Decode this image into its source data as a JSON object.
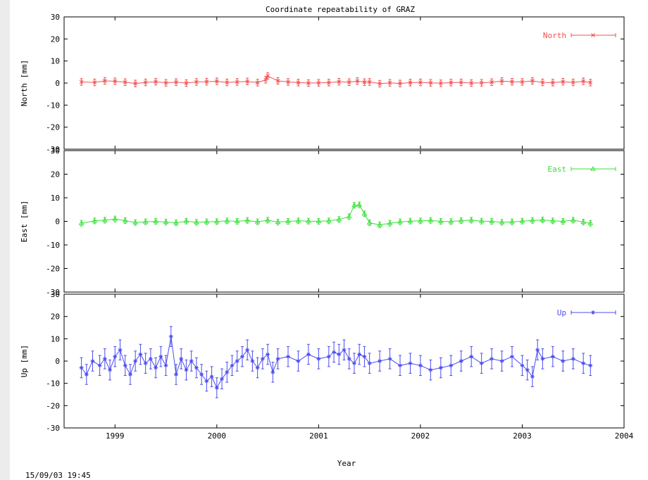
{
  "title": "Coordinate repeatability of GRAZ",
  "timestamp": "15/09/03 19:45",
  "chart_data": {
    "type": "scatter",
    "title": "Coordinate repeatability of GRAZ",
    "xlabel": "Year",
    "xlim": [
      1998.5,
      2004.0
    ],
    "xticks": [
      "1999",
      "2000",
      "2001",
      "2002",
      "2003",
      "2004"
    ],
    "yticks": [
      "30",
      "20",
      "10",
      "0",
      "-10",
      "-20",
      "-30"
    ],
    "grid": false,
    "legend_position": "top-right",
    "panels": [
      {
        "name": "North",
        "ylabel": "North [mm]",
        "ylim": [
          -30,
          30
        ],
        "color": "#f05050",
        "marker": "x",
        "series": [
          {
            "name": "North",
            "x": [
              1998.67,
              1998.8,
              1998.9,
              1999.0,
              1999.1,
              1999.2,
              1999.3,
              1999.4,
              1999.5,
              1999.6,
              1999.7,
              1999.8,
              1999.9,
              2000.0,
              2000.1,
              2000.2,
              2000.3,
              2000.4,
              2000.48,
              2000.5,
              2000.6,
              2000.7,
              2000.8,
              2000.9,
              2001.0,
              2001.1,
              2001.2,
              2001.3,
              2001.38,
              2001.45,
              2001.5,
              2001.6,
              2001.7,
              2001.8,
              2001.9,
              2002.0,
              2002.1,
              2002.2,
              2002.3,
              2002.4,
              2002.5,
              2002.6,
              2002.7,
              2002.8,
              2002.9,
              2003.0,
              2003.1,
              2003.2,
              2003.3,
              2003.4,
              2003.5,
              2003.6,
              2003.67
            ],
            "y": [
              0.5,
              0.3,
              1.0,
              0.8,
              0.4,
              -0.2,
              0.3,
              0.6,
              0.1,
              0.4,
              0.0,
              0.5,
              0.6,
              0.8,
              0.3,
              0.5,
              0.7,
              0.2,
              1.5,
              3.2,
              1.0,
              0.5,
              0.2,
              0.0,
              0.1,
              0.2,
              0.6,
              0.4,
              0.9,
              0.4,
              0.5,
              -0.3,
              0.1,
              -0.2,
              0.2,
              0.3,
              0.1,
              -0.1,
              0.2,
              0.3,
              0.0,
              0.1,
              0.4,
              0.9,
              0.6,
              0.5,
              1.0,
              0.3,
              0.2,
              0.6,
              0.3,
              0.8,
              0.2
            ],
            "err": 1.5
          }
        ]
      },
      {
        "name": "East",
        "ylabel": "East [mm]",
        "ylim": [
          -30,
          30
        ],
        "color": "#38e038",
        "marker": "triangle",
        "series": [
          {
            "name": "East",
            "x": [
              1998.67,
              1998.8,
              1998.9,
              1999.0,
              1999.1,
              1999.2,
              1999.3,
              1999.4,
              1999.5,
              1999.6,
              1999.7,
              1999.8,
              1999.9,
              2000.0,
              2000.1,
              2000.2,
              2000.3,
              2000.4,
              2000.5,
              2000.6,
              2000.7,
              2000.8,
              2000.9,
              2001.0,
              2001.1,
              2001.2,
              2001.3,
              2001.35,
              2001.4,
              2001.45,
              2001.5,
              2001.6,
              2001.7,
              2001.8,
              2001.9,
              2002.0,
              2002.1,
              2002.2,
              2002.3,
              2002.4,
              2002.5,
              2002.6,
              2002.7,
              2002.8,
              2002.9,
              2003.0,
              2003.1,
              2003.2,
              2003.3,
              2003.4,
              2003.5,
              2003.6,
              2003.67
            ],
            "y": [
              -0.8,
              0.2,
              0.5,
              1.0,
              0.3,
              -0.5,
              -0.2,
              0.0,
              -0.3,
              -0.6,
              0.1,
              -0.4,
              -0.2,
              -0.1,
              0.2,
              0.0,
              0.4,
              -0.2,
              0.5,
              -0.3,
              0.0,
              0.2,
              0.1,
              0.0,
              0.2,
              0.8,
              2.0,
              6.8,
              7.0,
              3.2,
              -0.6,
              -1.5,
              -0.8,
              -0.2,
              0.1,
              0.2,
              0.4,
              0.0,
              -0.1,
              0.3,
              0.5,
              0.1,
              0.0,
              -0.4,
              -0.2,
              0.1,
              0.4,
              0.6,
              0.2,
              0.0,
              0.5,
              -0.3,
              -0.8
            ],
            "err": 1.2
          }
        ]
      },
      {
        "name": "Up",
        "ylabel": "Up [mm]",
        "ylim": [
          -30,
          30
        ],
        "color": "#4c4cf0",
        "marker": "star",
        "series": [
          {
            "name": "Up",
            "x": [
              1998.67,
              1998.72,
              1998.78,
              1998.85,
              1998.9,
              1998.95,
              1999.0,
              1999.05,
              1999.1,
              1999.15,
              1999.2,
              1999.25,
              1999.3,
              1999.35,
              1999.4,
              1999.45,
              1999.5,
              1999.55,
              1999.6,
              1999.65,
              1999.7,
              1999.75,
              1999.8,
              1999.85,
              1999.9,
              1999.95,
              2000.0,
              2000.05,
              2000.1,
              2000.15,
              2000.2,
              2000.25,
              2000.3,
              2000.35,
              2000.4,
              2000.45,
              2000.5,
              2000.55,
              2000.6,
              2000.7,
              2000.8,
              2000.9,
              2001.0,
              2001.1,
              2001.15,
              2001.2,
              2001.25,
              2001.3,
              2001.35,
              2001.4,
              2001.45,
              2001.5,
              2001.6,
              2001.7,
              2001.8,
              2001.9,
              2002.0,
              2002.1,
              2002.2,
              2002.3,
              2002.4,
              2002.5,
              2002.6,
              2002.7,
              2002.8,
              2002.9,
              2003.0,
              2003.05,
              2003.1,
              2003.15,
              2003.2,
              2003.3,
              2003.4,
              2003.5,
              2003.6,
              2003.67
            ],
            "y": [
              -3,
              -6,
              0,
              -2,
              1,
              -4,
              2,
              5,
              -2,
              -6,
              0,
              3,
              -1,
              1,
              -3,
              2,
              -2,
              11,
              -6,
              1,
              -4,
              0,
              -3,
              -6,
              -9,
              -7,
              -12,
              -8,
              -5,
              -2,
              0,
              2,
              5,
              0,
              -3,
              1,
              3,
              -5,
              1,
              2,
              0,
              3,
              1,
              2,
              4,
              3,
              5,
              1,
              -1,
              3,
              2,
              -1,
              0,
              1,
              -2,
              -1,
              -2,
              -4,
              -3,
              -2,
              0,
              2,
              -1,
              1,
              0,
              2,
              -2,
              -4,
              -7,
              5,
              1,
              2,
              0,
              1,
              -1,
              -2
            ],
            "err": 4.5
          }
        ]
      }
    ]
  }
}
